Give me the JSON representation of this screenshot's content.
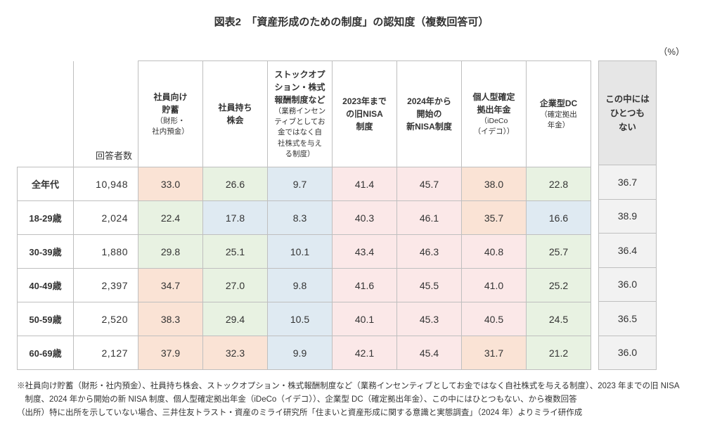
{
  "title": "図表2　「資産形成のための制度」の認知度（複数回答可）",
  "unit": "（%）",
  "columns": {
    "corner": "回答者数",
    "c1": {
      "main": "社員向け\n貯蓄",
      "sub": "（財形・\n社内預金）"
    },
    "c2": {
      "main": "社員持ち\n株会"
    },
    "c3": {
      "main": "ストックオプ\nション・株式\n報酬制度など",
      "sub": "（業務インセン\nティブとしてお\n金ではなく自\n社株式を与え\nる制度）"
    },
    "c4": {
      "main": "2023年まで\nの旧NISA\n制度"
    },
    "c5": {
      "main": "2024年から\n開始の\n新NISA制度"
    },
    "c6": {
      "main": "個人型確定\n拠出年金",
      "sub": "（iDeCo\n（イデコ））"
    },
    "c7": {
      "main": "企業型DC",
      "sub": "（確定拠出\n年金）"
    },
    "side": "この中には\nひとつも\nない"
  },
  "rows": [
    {
      "label": "全年代",
      "n": "10,948",
      "v": [
        "33.0",
        "26.6",
        "9.7",
        "41.4",
        "45.7",
        "38.0",
        "22.8"
      ],
      "side": "36.7"
    },
    {
      "label": "18-29歳",
      "n": "2,024",
      "v": [
        "22.4",
        "17.8",
        "8.3",
        "40.3",
        "46.1",
        "35.7",
        "16.6"
      ],
      "side": "38.9"
    },
    {
      "label": "30-39歳",
      "n": "1,880",
      "v": [
        "29.8",
        "25.1",
        "10.1",
        "43.4",
        "46.3",
        "40.8",
        "25.7"
      ],
      "side": "36.4"
    },
    {
      "label": "40-49歳",
      "n": "2,397",
      "v": [
        "34.7",
        "27.0",
        "9.8",
        "41.6",
        "45.5",
        "41.0",
        "25.2"
      ],
      "side": "36.0"
    },
    {
      "label": "50-59歳",
      "n": "2,520",
      "v": [
        "38.3",
        "29.4",
        "10.5",
        "40.1",
        "45.3",
        "40.5",
        "24.5"
      ],
      "side": "36.5"
    },
    {
      "label": "60-69歳",
      "n": "2,127",
      "v": [
        "37.9",
        "32.3",
        "9.9",
        "42.1",
        "45.4",
        "31.7",
        "21.2"
      ],
      "side": "36.0"
    }
  ],
  "colors": {
    "cell_bg": [
      [
        "#fae3d5",
        "#e8f2e2",
        "#dfeaf2",
        "#fbe8e8",
        "#fbe8e8",
        "#fae3d5",
        "#e8f2e2"
      ],
      [
        "#e8f2e2",
        "#dfeaf2",
        "#dfeaf2",
        "#fbe8e8",
        "#fbe8e8",
        "#fae3d5",
        "#dfeaf2"
      ],
      [
        "#e8f2e2",
        "#e8f2e2",
        "#dfeaf2",
        "#fbe8e8",
        "#fbe8e8",
        "#fbe8e8",
        "#e8f2e2"
      ],
      [
        "#fae3d5",
        "#e8f2e2",
        "#dfeaf2",
        "#fbe8e8",
        "#fbe8e8",
        "#fbe8e8",
        "#e8f2e2"
      ],
      [
        "#fae3d5",
        "#e8f2e2",
        "#dfeaf2",
        "#fbe8e8",
        "#fbe8e8",
        "#fbe8e8",
        "#e8f2e2"
      ],
      [
        "#fae3d5",
        "#fae3d5",
        "#dfeaf2",
        "#fbe8e8",
        "#fbe8e8",
        "#fae3d5",
        "#e8f2e2"
      ]
    ],
    "side_header_bg": "#e6e6e6",
    "side_cell_bg": "#f2f2f2",
    "border": "#bfbfbf"
  },
  "notes": [
    "※社員向け貯蓄（財形・社内預金）、社員持ち株会、ストックオプション・株式報酬制度など（業務インセンティブとしてお金ではなく自社株式を与える制度）、2023 年までの旧 NISA 制度、2024 年から開始の新 NISA 制度、個人型確定拠出年金（iDeCo（イデコ））、企業型 DC（確定拠出年金）、この中にはひとつもない、から複数回答",
    "（出所）特に出所を示していない場合、三井住友トラスト・資産のミライ研究所「住まいと資産形成に関する意識と実態調査」（2024 年）よりミライ研作成"
  ]
}
